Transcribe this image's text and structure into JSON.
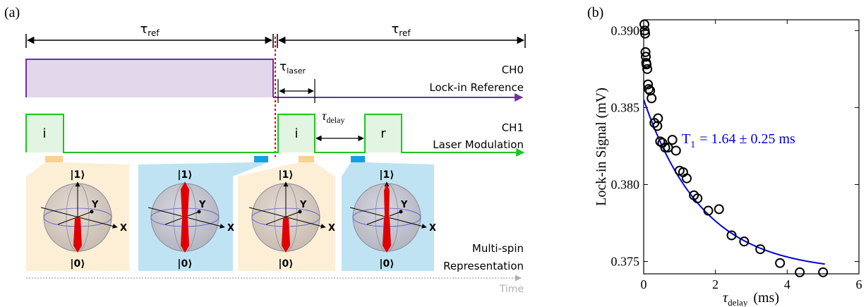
{
  "panel_a": {
    "label": "(a)",
    "tau_ref_left": "τ",
    "tau_ref_left_sub": "ref",
    "tau_ref_right": "τ",
    "tau_ref_right_sub": "ref",
    "tau_laser": "τ",
    "tau_laser_sub": "laser",
    "tau_delay": "τ",
    "tau_delay_sub": "delay",
    "ch0_title": "CH0",
    "ch0_desc": "Lock-in Reference",
    "ch1_title": "CH1",
    "ch1_desc": "Laser Modulation",
    "pulse_i_1": "i",
    "pulse_i_2": "i",
    "pulse_r": "r",
    "sphere_top": "|1⟩",
    "sphere_bottom": "|0⟩",
    "axis_x": "X",
    "axis_y": "Y",
    "rep_line1": "Multi-spin",
    "rep_line2": "Representation",
    "time_label": "Time",
    "colors": {
      "ch0": "#7030a0",
      "ch0_fill": "#e3d7ec",
      "ch1": "#22c322",
      "ch1_fill": "#e2f4e2",
      "marker_orange": "#f8d292",
      "marker_blue": "#14a0e0",
      "panel_orange": "#fcefd6",
      "panel_blue": "#bfe3f3",
      "arrow": "#e00000",
      "sync_line": "#dd0000"
    }
  },
  "panel_b": {
    "label": "(b)",
    "ylabel": "Lock-in Signal (mV)",
    "xlabel_main": "τ",
    "xlabel_sub": "delay",
    "xlabel_unit": "(ms)",
    "annotation": "T",
    "annotation_sub": "1",
    "annotation_rest": "= 1.64 ± 0.25 ms",
    "fit_color": "#0000dd"
  },
  "chart_data": {
    "type": "scatter",
    "xlabel": "τdelay (ms)",
    "ylabel": "Lock-in Signal (mV)",
    "xlim": [
      0,
      6
    ],
    "ylim": [
      0.3742,
      0.3907
    ],
    "xticks": [
      0,
      2,
      4,
      6
    ],
    "yticks": [
      0.375,
      0.38,
      0.385,
      0.39
    ],
    "ytick_labels": [
      "0.375",
      "0.380",
      "0.385",
      "0.390"
    ],
    "grid": false,
    "series": [
      {
        "kind": "points",
        "x": [
          0.02,
          0.03,
          0.04,
          0.05,
          0.06,
          0.07,
          0.08,
          0.1,
          0.12,
          0.14,
          0.18,
          0.22,
          0.3,
          0.38,
          0.4,
          0.46,
          0.52,
          0.6,
          0.68,
          0.8,
          0.9,
          1.0,
          1.1,
          1.2,
          1.4,
          1.5,
          1.8,
          2.1,
          2.45,
          2.8,
          3.25,
          3.8,
          4.35,
          5.0
        ],
        "y": [
          0.3904,
          0.39,
          0.3898,
          0.3886,
          0.3883,
          0.3879,
          0.3878,
          0.3875,
          0.3865,
          0.3862,
          0.3861,
          0.3856,
          0.384,
          0.3838,
          0.3843,
          0.3828,
          0.3827,
          0.3824,
          0.3824,
          0.3829,
          0.3822,
          0.3809,
          0.3808,
          0.3804,
          0.3793,
          0.3791,
          0.3783,
          0.3784,
          0.3767,
          0.3763,
          0.3758,
          0.3749,
          0.3743,
          0.3743
        ]
      },
      {
        "kind": "fit",
        "equation": "y = 0.37432 + 0.0112*exp(-x/1.64)",
        "y0": 0.37432,
        "a": 0.0112,
        "t1": 1.64,
        "x_range": [
          0,
          5.05
        ]
      }
    ],
    "annotation": "T1 = 1.64 ± 0.25 ms"
  }
}
